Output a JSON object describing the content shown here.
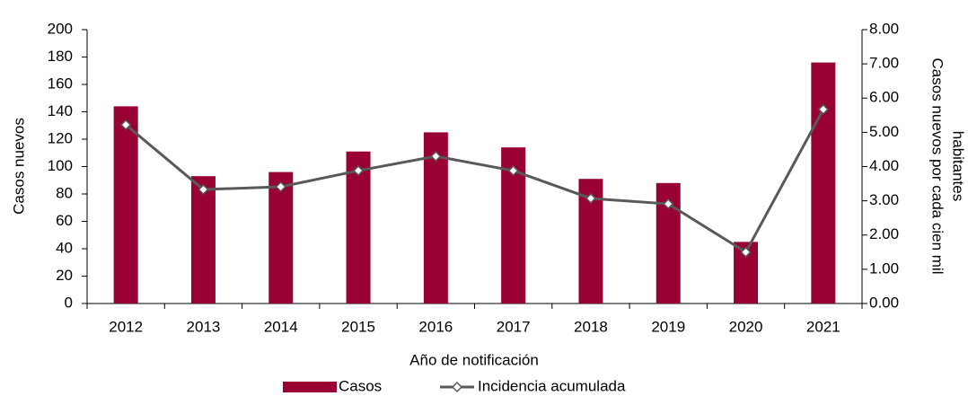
{
  "chart_data": {
    "type": "bar-line",
    "xlabel": "Año de notificación",
    "ylabel": "Casos nuevos",
    "y2label": [
      "Casos nuevos por cada cien mil",
      "habitantes"
    ],
    "categories": [
      "2012",
      "2013",
      "2014",
      "2015",
      "2016",
      "2017",
      "2018",
      "2019",
      "2020",
      "2021"
    ],
    "series": [
      {
        "name": "Casos",
        "type": "bar",
        "color": "#990033",
        "values": [
          144,
          93,
          96,
          111,
          125,
          114,
          91,
          88,
          45,
          176
        ]
      },
      {
        "name": "Incidencia acumulada",
        "type": "line",
        "axis": "y2",
        "color": "#595959",
        "values": [
          5.22,
          3.33,
          3.41,
          3.88,
          4.3,
          3.88,
          3.07,
          2.91,
          1.5,
          5.67
        ]
      }
    ],
    "ylim": [
      0,
      200
    ],
    "yticks": [
      0,
      20,
      40,
      60,
      80,
      100,
      120,
      140,
      160,
      180,
      200
    ],
    "y2lim": [
      0,
      8
    ],
    "y2ticks": [
      {
        "value": 0,
        "label": "0.00"
      },
      {
        "value": 1,
        "label": "1.00"
      },
      {
        "value": 2,
        "label": "2.00"
      },
      {
        "value": 3,
        "label": "3.00"
      },
      {
        "value": 4,
        "label": "4.00"
      },
      {
        "value": 5,
        "label": "5.00"
      },
      {
        "value": 6,
        "label": "6.00"
      },
      {
        "value": 7,
        "label": "7.00"
      },
      {
        "value": 8,
        "label": "8.00"
      }
    ],
    "grid": false,
    "legend": "bottom"
  }
}
